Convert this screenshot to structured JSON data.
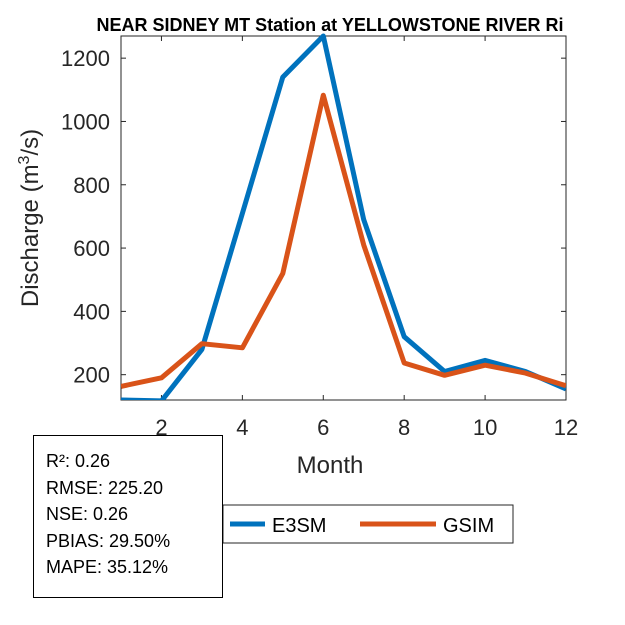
{
  "chart_data": {
    "type": "line",
    "title": "NEAR SIDNEY MT  Station at  YELLOWSTONE RIVER  Ri",
    "xlabel": "Month",
    "ylabel_main": "Discharge (m",
    "ylabel_sup": "3",
    "ylabel_tail": "/s)",
    "xlim": [
      1,
      12
    ],
    "ylim": [
      120,
      1270
    ],
    "xticks": [
      2,
      4,
      6,
      8,
      10,
      12
    ],
    "yticks": [
      200,
      400,
      600,
      800,
      1000,
      1200
    ],
    "x": [
      1,
      2,
      3,
      4,
      5,
      6,
      7,
      8,
      9,
      10,
      11,
      12
    ],
    "series": [
      {
        "name": "E3SM",
        "color": "#0072BD",
        "values": [
          120,
          117,
          280,
          710,
          1140,
          1270,
          690,
          320,
          210,
          245,
          210,
          155
        ]
      },
      {
        "name": "GSIM",
        "color": "#D95319",
        "values": [
          163,
          190,
          298,
          285,
          520,
          1083,
          610,
          237,
          198,
          230,
          205,
          165
        ]
      }
    ]
  },
  "stats": {
    "r2": "R²: 0.26",
    "rmse": "RMSE: 225.20",
    "nse": "NSE: 0.26",
    "pbias": "PBIAS: 29.50%",
    "mape": "MAPE: 35.12%"
  }
}
